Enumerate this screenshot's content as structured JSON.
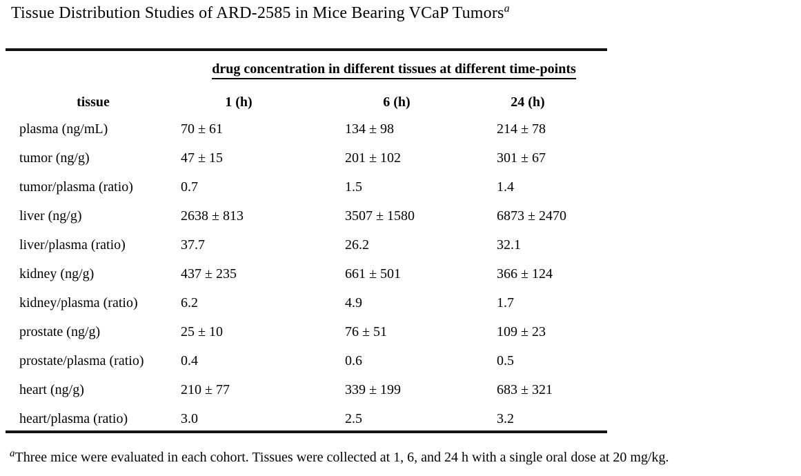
{
  "title": {
    "text": "Tissue Distribution Studies of ARD-2585 in Mice Bearing VCaP Tumors",
    "superscript": "a"
  },
  "table": {
    "span_header": "drug concentration in different tissues at different time-points",
    "columns": {
      "tissue": "tissue",
      "t1": "1 (h)",
      "t6": "6 (h)",
      "t24": "24 (h)"
    },
    "rows": [
      {
        "tissue": "plasma (ng/mL)",
        "values": [
          "70 ± 61",
          "134 ± 98",
          "214 ± 78"
        ]
      },
      {
        "tissue": "tumor (ng/g)",
        "values": [
          "47 ± 15",
          "201 ± 102",
          "301 ± 67"
        ]
      },
      {
        "tissue": "tumor/plasma (ratio)",
        "values": [
          "0.7",
          "1.5",
          "1.4"
        ]
      },
      {
        "tissue": "liver (ng/g)",
        "values": [
          "2638 ± 813",
          "3507 ± 1580",
          "6873 ± 2470"
        ]
      },
      {
        "tissue": "liver/plasma (ratio)",
        "values": [
          "37.7",
          "26.2",
          "32.1"
        ]
      },
      {
        "tissue": "kidney (ng/g)",
        "values": [
          "437 ± 235",
          "661 ± 501",
          "366 ± 124"
        ]
      },
      {
        "tissue": "kidney/plasma (ratio)",
        "values": [
          "6.2",
          "4.9",
          "1.7"
        ]
      },
      {
        "tissue": "prostate (ng/g)",
        "values": [
          "25 ± 10",
          "76 ± 51",
          "109 ± 23"
        ]
      },
      {
        "tissue": "prostate/plasma (ratio)",
        "values": [
          "0.4",
          "0.6",
          "0.5"
        ]
      },
      {
        "tissue": "heart (ng/g)",
        "values": [
          "210 ± 77",
          "339 ± 199",
          "683 ± 321"
        ]
      },
      {
        "tissue": "heart/plasma (ratio)",
        "values": [
          "3.0",
          "2.5",
          "3.2"
        ]
      }
    ]
  },
  "footnote": {
    "marker": "a",
    "text": "Three mice were evaluated in each cohort. Tissues were collected at 1, 6, and 24 h with a single oral dose at 20 mg/kg."
  },
  "colors": {
    "text": "#000000",
    "background": "#ffffff",
    "rule": "#141414"
  }
}
